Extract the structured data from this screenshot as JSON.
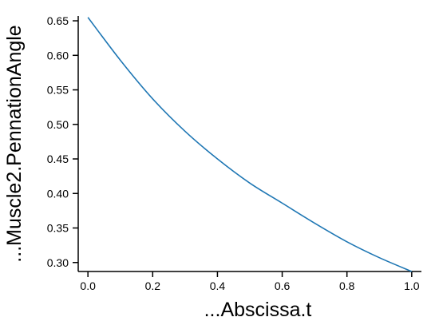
{
  "chart_data": {
    "type": "line",
    "xlabel": "...Abscissa.t",
    "ylabel": "...Muscle2.PennationAngle",
    "xlim": [
      -0.03,
      1.03
    ],
    "ylim": [
      0.287,
      0.657
    ],
    "x_ticks": [
      "0.0",
      "0.2",
      "0.4",
      "0.6",
      "0.8",
      "1.0"
    ],
    "y_ticks": [
      "0.30",
      "0.35",
      "0.40",
      "0.45",
      "0.50",
      "0.55",
      "0.60",
      "0.65"
    ],
    "grid": false,
    "legend": "none",
    "series": [
      {
        "color": "#1f77b4",
        "x": [
          0.0,
          0.1,
          0.2,
          0.3,
          0.4,
          0.5,
          0.6,
          0.7,
          0.8,
          0.9,
          1.0
        ],
        "y": [
          0.655,
          0.593,
          0.537,
          0.49,
          0.45,
          0.415,
          0.386,
          0.357,
          0.33,
          0.307,
          0.287
        ]
      }
    ]
  }
}
